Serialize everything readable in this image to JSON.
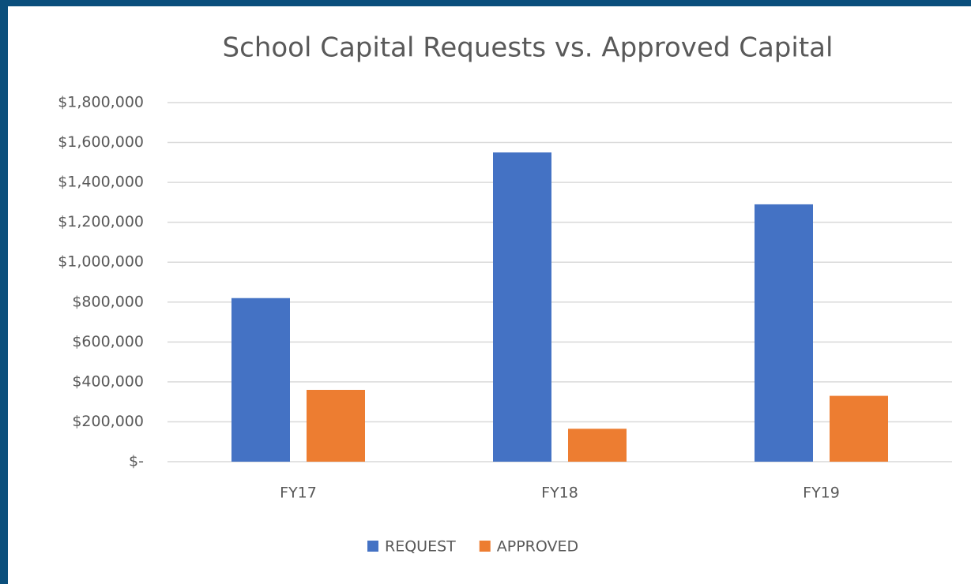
{
  "chart_data": {
    "type": "bar",
    "title": "School Capital Requests vs. Approved Capital",
    "categories": [
      "FY17",
      "FY18",
      "FY19"
    ],
    "series": [
      {
        "name": "REQUEST",
        "color": "#4472c4",
        "values": [
          820000,
          1550000,
          1290000
        ]
      },
      {
        "name": "APPROVED",
        "color": "#ed7d31",
        "values": [
          360000,
          165000,
          330000
        ]
      }
    ],
    "ylim": [
      0,
      1800000
    ],
    "yticks": [
      {
        "value": 0,
        "label": "$-"
      },
      {
        "value": 200000,
        "label": "$200,000"
      },
      {
        "value": 400000,
        "label": "$400,000"
      },
      {
        "value": 600000,
        "label": "$600,000"
      },
      {
        "value": 800000,
        "label": "$800,000"
      },
      {
        "value": 1000000,
        "label": "$1,000,000"
      },
      {
        "value": 1200000,
        "label": "$1,200,000"
      },
      {
        "value": 1400000,
        "label": "$1,400,000"
      },
      {
        "value": 1600000,
        "label": "$1,600,000"
      },
      {
        "value": 1800000,
        "label": "$1,800,000"
      }
    ],
    "grid": true,
    "legend": "bottom"
  }
}
